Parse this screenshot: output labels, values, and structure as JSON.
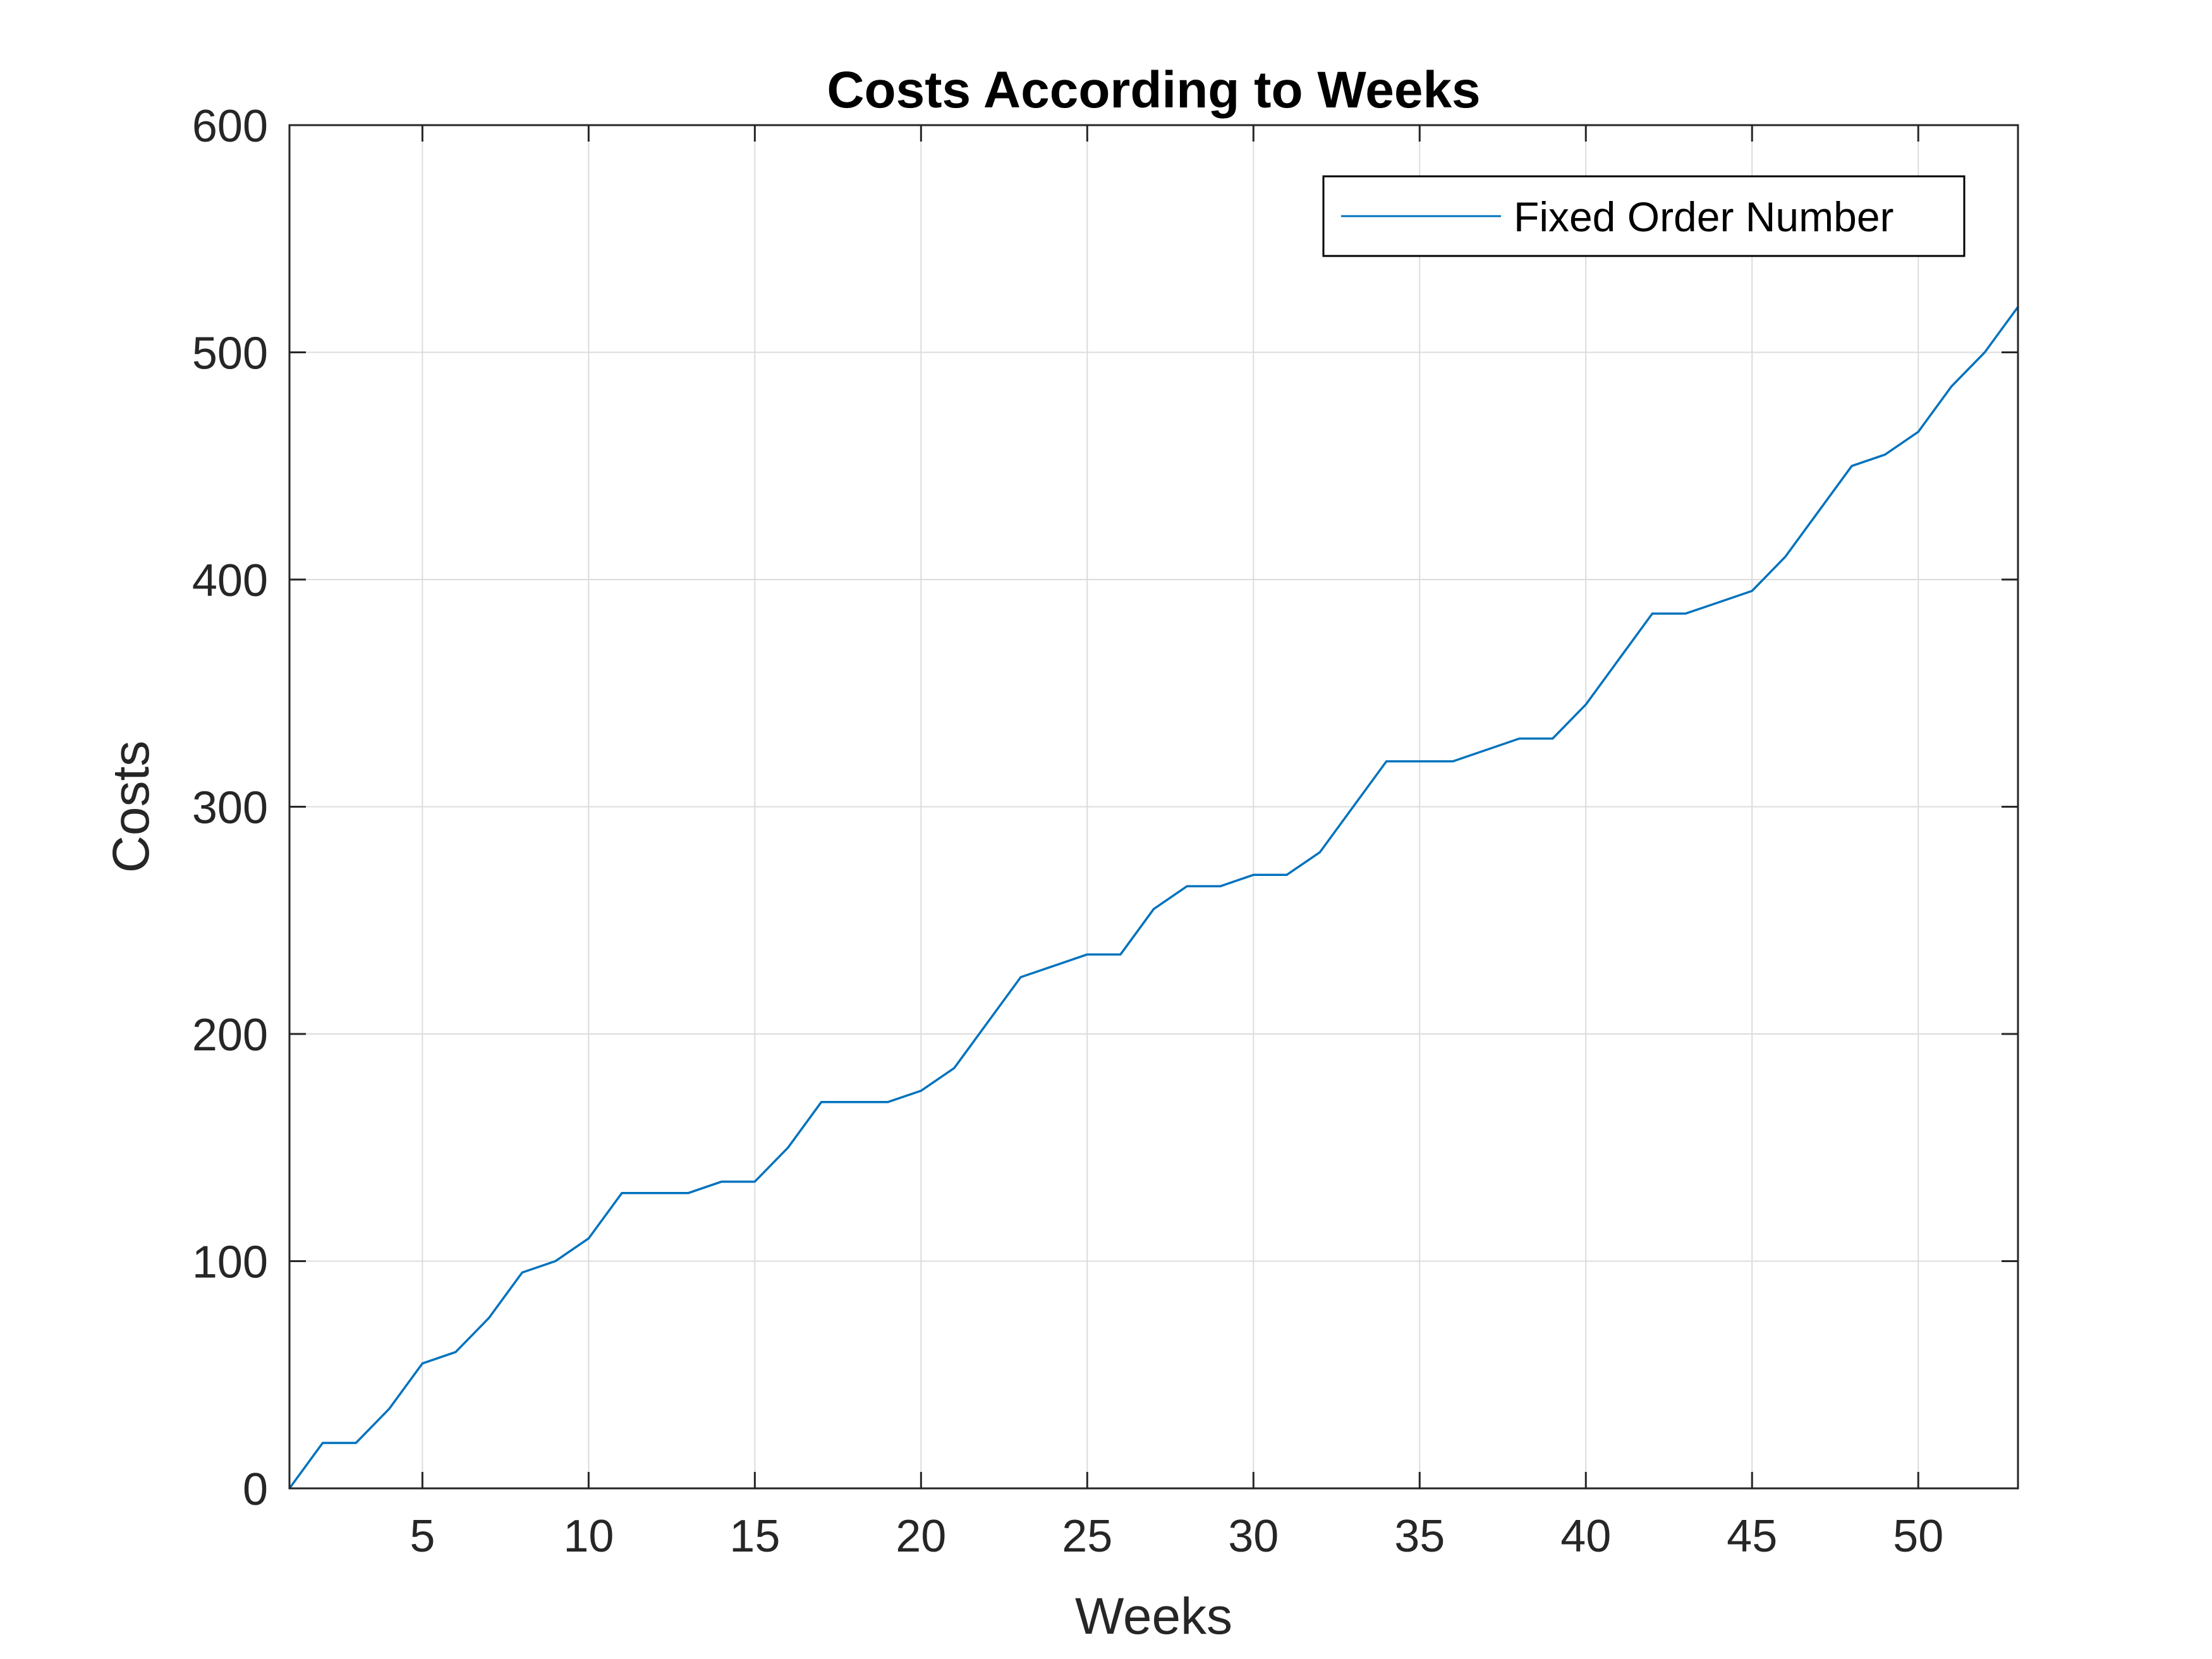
{
  "chart_data": {
    "type": "line",
    "title": "Costs According to Weeks",
    "xlabel": "Weeks",
    "ylabel": "Costs",
    "xlim": [
      1,
      53
    ],
    "ylim": [
      0,
      600
    ],
    "xticks": [
      5,
      10,
      15,
      20,
      25,
      30,
      35,
      40,
      45,
      50
    ],
    "yticks": [
      0,
      100,
      200,
      300,
      400,
      500,
      600
    ],
    "grid": true,
    "legend_position": "top-right",
    "colors": {
      "line": "#0072BD",
      "axes": "#262626",
      "grid": "#DCDCDC"
    },
    "series": [
      {
        "name": "Fixed Order Number",
        "x": [
          1,
          2,
          3,
          4,
          5,
          6,
          7,
          8,
          9,
          10,
          11,
          12,
          13,
          14,
          15,
          16,
          17,
          18,
          19,
          20,
          21,
          22,
          23,
          24,
          25,
          26,
          27,
          28,
          29,
          30,
          31,
          32,
          33,
          34,
          35,
          36,
          37,
          38,
          39,
          40,
          41,
          42,
          43,
          44,
          45,
          46,
          47,
          48,
          49,
          50,
          51,
          52,
          53
        ],
        "values": [
          0,
          20,
          20,
          35,
          55,
          60,
          75,
          95,
          100,
          110,
          130,
          130,
          130,
          135,
          135,
          150,
          170,
          170,
          170,
          175,
          185,
          205,
          225,
          230,
          235,
          235,
          255,
          265,
          265,
          270,
          270,
          280,
          300,
          320,
          320,
          320,
          325,
          330,
          330,
          345,
          365,
          385,
          385,
          390,
          395,
          410,
          430,
          450,
          455,
          465,
          485,
          500,
          520
        ]
      }
    ]
  }
}
